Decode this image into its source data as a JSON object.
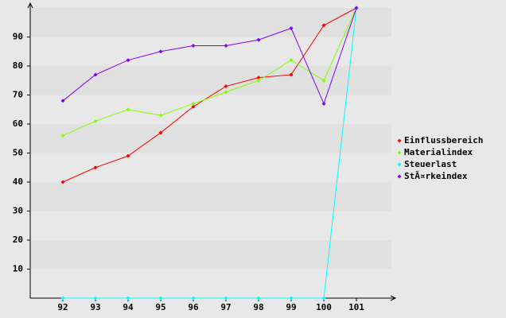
{
  "chart_data": {
    "type": "line",
    "categories": [
      "92",
      "93",
      "94",
      "95",
      "96",
      "97",
      "98",
      "99",
      "100",
      "101"
    ],
    "series": [
      {
        "name": "Einflussbereich",
        "color": "#ff0000",
        "values": [
          40,
          45,
          49,
          57,
          66,
          73,
          76,
          77,
          94,
          100
        ]
      },
      {
        "name": "Materialindex",
        "color": "#80ff00",
        "values": [
          56,
          61,
          65,
          63,
          67,
          71,
          75,
          82,
          75,
          100
        ]
      },
      {
        "name": "Steuerlast",
        "color": "#00ffff",
        "values": [
          0,
          0,
          0,
          0,
          0,
          0,
          0,
          0,
          0,
          100
        ]
      },
      {
        "name": "StÃ¤rkeindex",
        "color": "#8000ff",
        "values": [
          68,
          77,
          82,
          85,
          87,
          87,
          89,
          93,
          67,
          100
        ]
      }
    ],
    "ylim": [
      0,
      100
    ],
    "yticks": [
      10,
      20,
      30,
      40,
      50,
      60,
      70,
      80,
      90
    ],
    "grid": true,
    "legend": "right"
  }
}
